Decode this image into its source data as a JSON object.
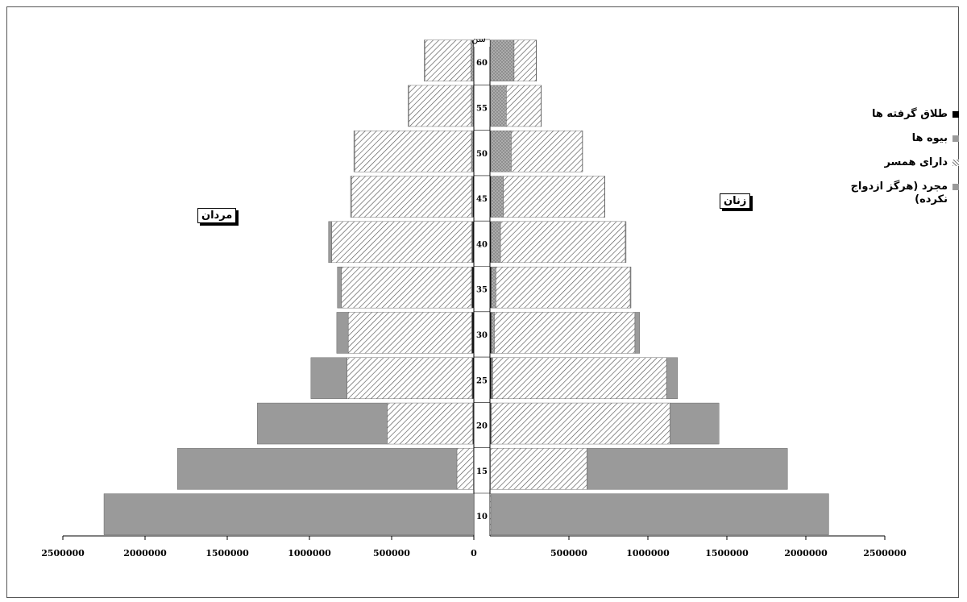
{
  "chart_data": {
    "type": "bar",
    "orientation": "horizontal-population-pyramid",
    "age_axis_title": "سن",
    "left_group_label": "مردان",
    "right_group_label": "زنان",
    "ages": [
      "10",
      "15",
      "20",
      "25",
      "30",
      "35",
      "40",
      "45",
      "50",
      "55",
      "60"
    ],
    "x_ticks_left": [
      "2500000",
      "2000000",
      "1500000",
      "1000000",
      "500000",
      "0"
    ],
    "x_ticks_right": [
      "500000",
      "1000000",
      "1500000",
      "2000000",
      "2500000"
    ],
    "xlim": [
      0,
      2500000
    ],
    "legend_position": "right",
    "legend": [
      {
        "key": "divorced",
        "label": "طلاق گرفته ها",
        "color": "#000000",
        "pattern": "solid"
      },
      {
        "key": "widowed",
        "label": "بیوه ها",
        "color": "#9a9a9a",
        "pattern": "dots"
      },
      {
        "key": "married",
        "label": "دارای همسر",
        "color": "#ffffff",
        "pattern": "hatch"
      },
      {
        "key": "single",
        "label": "مجرد (هرگز ازدواج نکرده)",
        "color": "#9a9a9a",
        "pattern": "solid"
      }
    ],
    "series_order": [
      "divorced",
      "widowed",
      "married",
      "single"
    ],
    "men": {
      "divorced": [
        0,
        2000,
        5000,
        8000,
        10000,
        10000,
        8000,
        6000,
        5000,
        4000,
        3000
      ],
      "widowed": [
        0,
        1000,
        2000,
        3000,
        4000,
        5000,
        6000,
        8000,
        10000,
        12000,
        15000
      ],
      "married": [
        0,
        100000,
        520000,
        760000,
        750000,
        790000,
        850000,
        730000,
        710000,
        380000,
        280000
      ],
      "single": [
        2250000,
        1700000,
        790000,
        220000,
        70000,
        25000,
        20000,
        6000,
        5000,
        4000,
        4000
      ]
    },
    "women": {
      "divorced": [
        0,
        2000,
        5000,
        8000,
        8000,
        8000,
        7000,
        6000,
        5000,
        4000,
        3000
      ],
      "widowed": [
        0,
        2000,
        5000,
        10000,
        20000,
        30000,
        60000,
        80000,
        130000,
        100000,
        150000
      ],
      "married": [
        5000,
        610000,
        1130000,
        1100000,
        890000,
        850000,
        790000,
        640000,
        450000,
        220000,
        140000
      ],
      "single": [
        2140000,
        1270000,
        310000,
        70000,
        30000,
        5000,
        5000,
        2000,
        2000,
        2000,
        2000
      ]
    }
  }
}
